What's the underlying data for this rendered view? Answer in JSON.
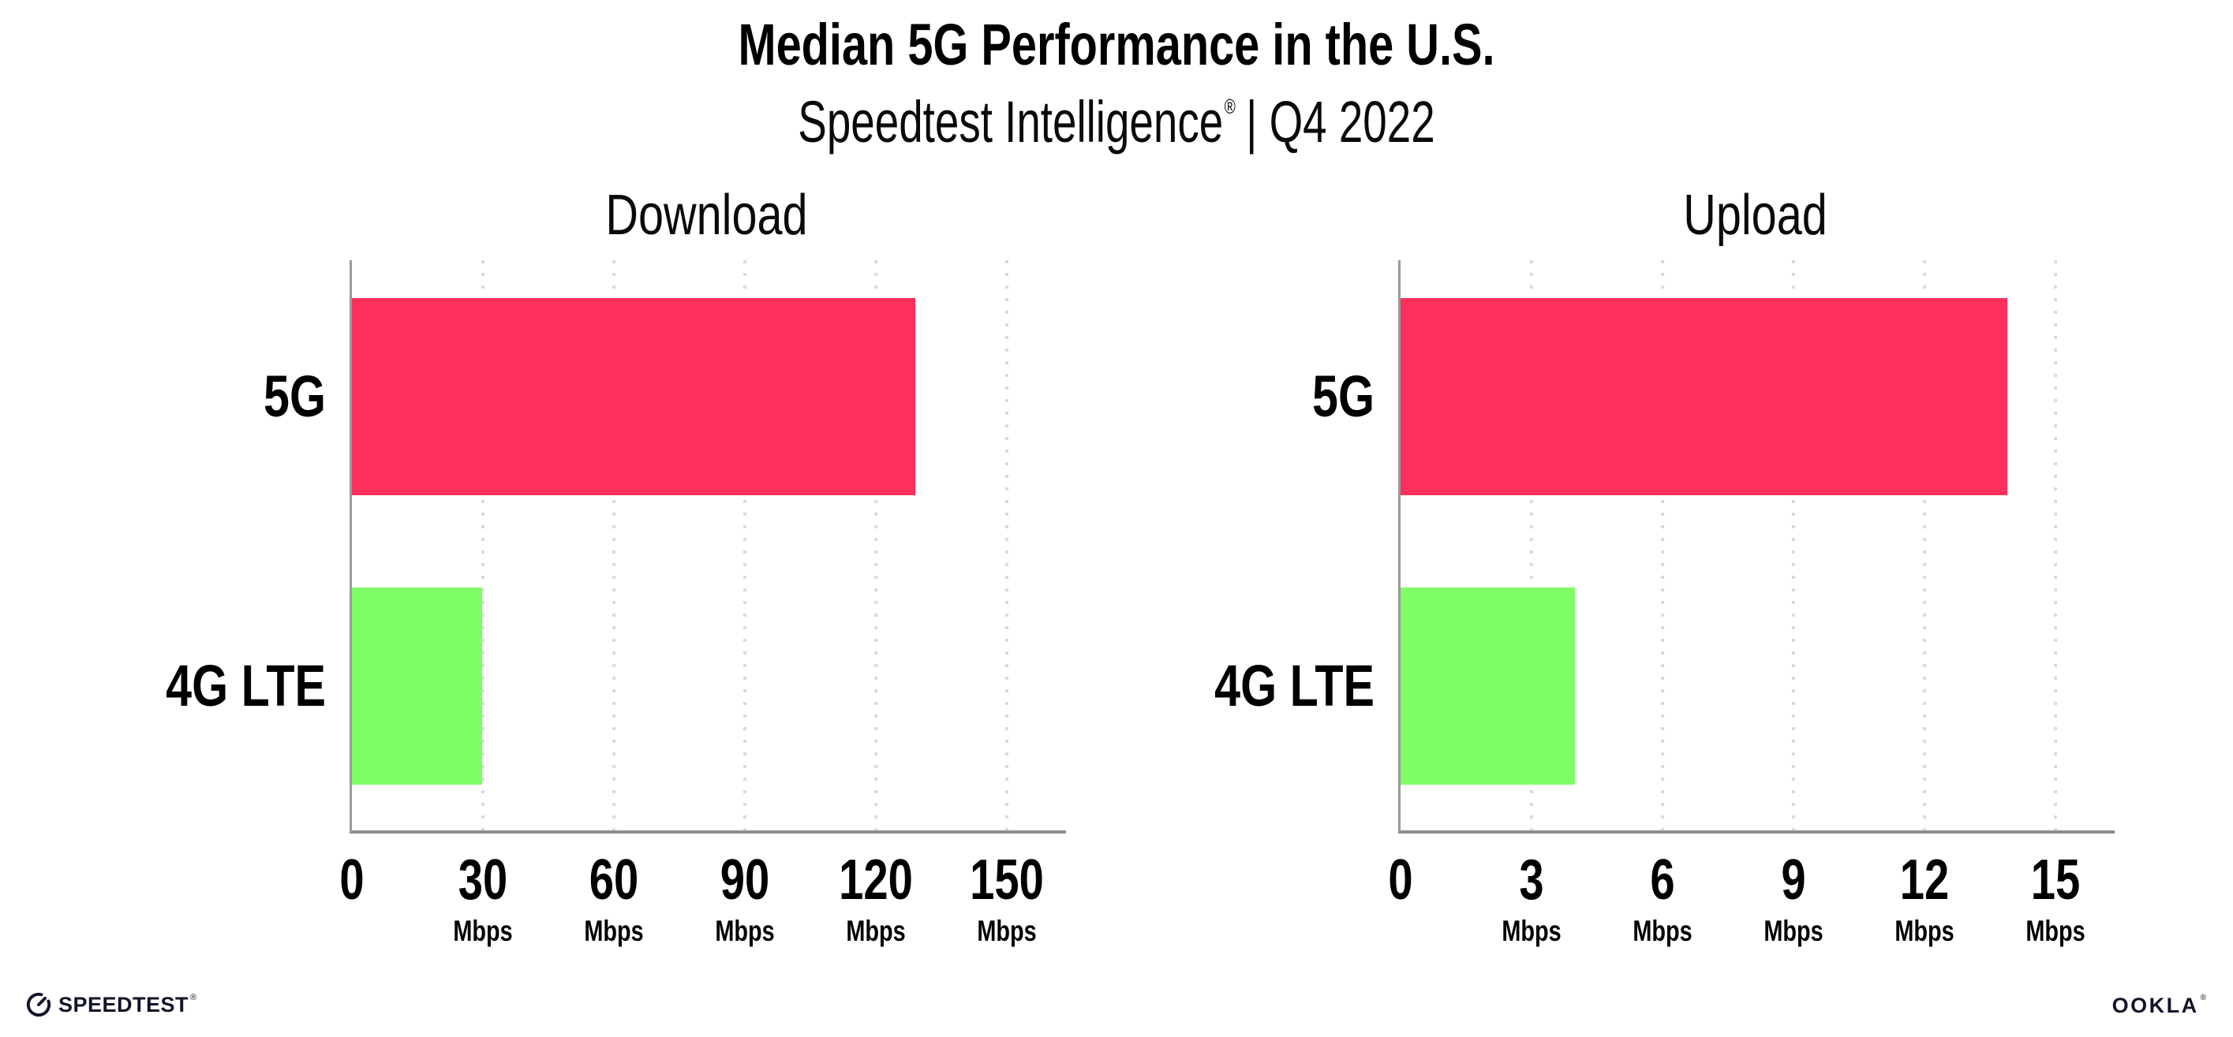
{
  "page": {
    "title": "Median 5G Performance in the U.S.",
    "subtitle": {
      "brand": "Speedtest Intelligence",
      "reg": "®",
      "period": "| Q4 2022"
    }
  },
  "chart_data": [
    {
      "type": "bar",
      "orientation": "horizontal",
      "title": "Download",
      "categories": [
        "5G",
        "4G LTE"
      ],
      "values": [
        129.1,
        29.9
      ],
      "unit": "Mbps",
      "xticks": [
        0,
        30,
        60,
        90,
        120,
        150
      ],
      "xlim": [
        0,
        163.6
      ],
      "grid": "vertical-dotted",
      "bar_colors": [
        "#fd2f5b",
        "#7efd67"
      ]
    },
    {
      "type": "bar",
      "orientation": "horizontal",
      "title": "Upload",
      "categories": [
        "5G",
        "4G LTE"
      ],
      "values": [
        13.9,
        4.0
      ],
      "unit": "Mbps",
      "xticks": [
        0,
        3,
        6,
        9,
        12,
        15
      ],
      "xlim": [
        0,
        16.36
      ],
      "grid": "vertical-dotted",
      "bar_colors": [
        "#fd2f5b",
        "#7efd67"
      ]
    }
  ],
  "footer": {
    "speedtest_label": "SPEEDTEST",
    "speedtest_reg": "®",
    "ookla_label": "OOKLA",
    "ookla_reg": "®"
  },
  "colors": {
    "bar_5g": "#fd2f5b",
    "bar_4g_lte": "#7efd67",
    "axis": "#8d8d8d",
    "gridline": "#d9d9e6",
    "text": "#000000",
    "logo": "#12142a"
  }
}
